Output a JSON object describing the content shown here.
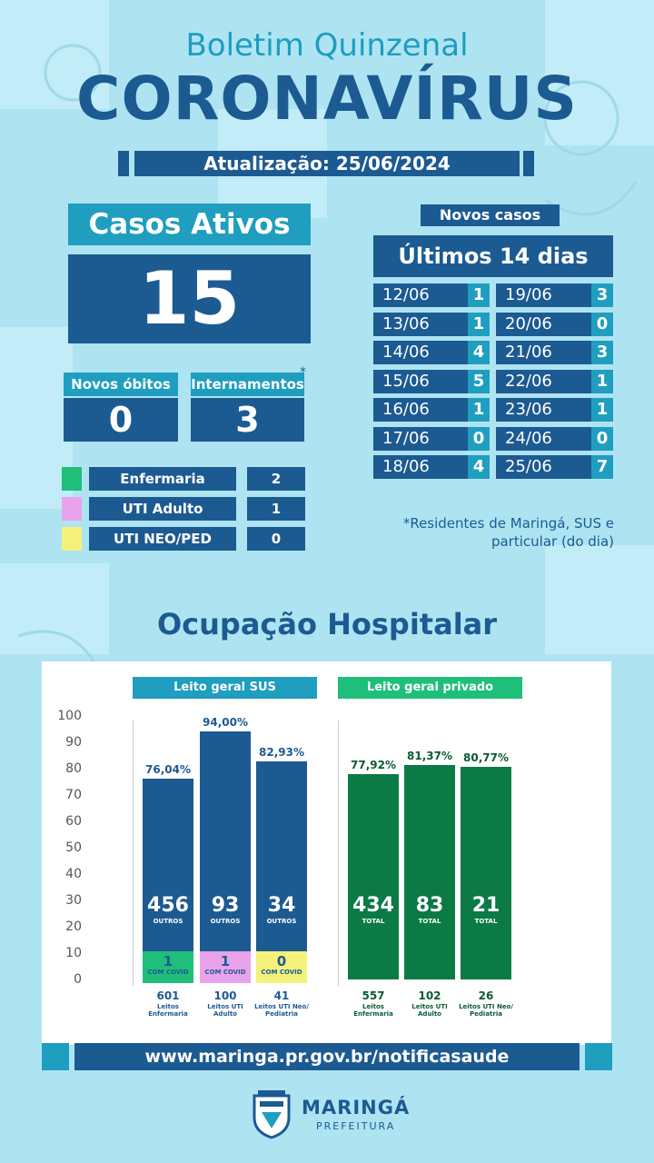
{
  "header": {
    "subtitle": "Boletim Quinzenal",
    "title": "CORONAVÍRUS",
    "update": "Atualização: 25/06/2024"
  },
  "active_cases": {
    "label": "Casos Ativos",
    "value": "15"
  },
  "deaths": {
    "label": "Novos óbitos",
    "value": "0"
  },
  "hospitalizations": {
    "label": "Internamentos",
    "asterisk": "*",
    "value": "3"
  },
  "breakdown": [
    {
      "name": "Enfermaria",
      "value": "2",
      "color": "#1fbf7a"
    },
    {
      "name": "UTI Adulto",
      "value": "1",
      "color": "#e9a3ea"
    },
    {
      "name": "UTI NEO/PED",
      "value": "0",
      "color": "#f4f27a"
    }
  ],
  "new_cases": {
    "label": "Novos casos",
    "header": "Últimos 14 dias",
    "days": [
      {
        "date": "12/06",
        "value": "1"
      },
      {
        "date": "13/06",
        "value": "1"
      },
      {
        "date": "14/06",
        "value": "4"
      },
      {
        "date": "15/06",
        "value": "5"
      },
      {
        "date": "16/06",
        "value": "1"
      },
      {
        "date": "17/06",
        "value": "0"
      },
      {
        "date": "18/06",
        "value": "4"
      },
      {
        "date": "19/06",
        "value": "3"
      },
      {
        "date": "20/06",
        "value": "0"
      },
      {
        "date": "21/06",
        "value": "3"
      },
      {
        "date": "22/06",
        "value": "1"
      },
      {
        "date": "23/06",
        "value": "1"
      },
      {
        "date": "24/06",
        "value": "0"
      },
      {
        "date": "25/06",
        "value": "7"
      }
    ]
  },
  "note": "*Residentes de Maringá, SUS e particular (do dia)",
  "section_title": "Ocupação Hospitalar",
  "chart_data": {
    "type": "bar",
    "ylim": [
      0,
      100
    ],
    "yticks": [
      0,
      10,
      20,
      30,
      40,
      50,
      60,
      70,
      80,
      90,
      100
    ],
    "groups": [
      {
        "name": "Leito geral SUS",
        "color": "#1c5a92",
        "label_color": "#1f9ebf",
        "bars": [
          {
            "percent": 76.04,
            "label": "76,04%",
            "others": "456",
            "others_label": "OUTROS",
            "covid": "1",
            "covid_label": "COM COVID",
            "covid_color": "#1fbf7a",
            "capacity": "601",
            "capacity_label": "Leitos Enfermaria"
          },
          {
            "percent": 94.0,
            "label": "94,00%",
            "others": "93",
            "others_label": "OUTROS",
            "covid": "1",
            "covid_label": "COM COVID",
            "covid_color": "#e9a3ea",
            "capacity": "100",
            "capacity_label": "Leitos UTI Adulto"
          },
          {
            "percent": 82.93,
            "label": "82,93%",
            "others": "34",
            "others_label": "OUTROS",
            "covid": "0",
            "covid_label": "COM COVID",
            "covid_color": "#f4f27a",
            "capacity": "41",
            "capacity_label": "Leitos UTI Neo/ Pediatria"
          }
        ]
      },
      {
        "name": "Leito geral privado",
        "color": "#0b7a45",
        "label_color": "#1fbf7a",
        "bars": [
          {
            "percent": 77.92,
            "label": "77,92%",
            "others": "434",
            "others_label": "TOTAL",
            "capacity": "557",
            "capacity_label": "Leitos Enfermaria"
          },
          {
            "percent": 81.37,
            "label": "81,37%",
            "others": "83",
            "others_label": "TOTAL",
            "capacity": "102",
            "capacity_label": "Leitos UTI Adulto"
          },
          {
            "percent": 80.77,
            "label": "80,77%",
            "others": "21",
            "others_label": "TOTAL",
            "capacity": "26",
            "capacity_label": "Leitos UTI Neo/ Pediatria"
          }
        ]
      }
    ]
  },
  "footer": {
    "url": "www.maringa.pr.gov.br/notificasaude",
    "logo_name": "MARINGÁ",
    "logo_sub": "PREFEITURA"
  }
}
